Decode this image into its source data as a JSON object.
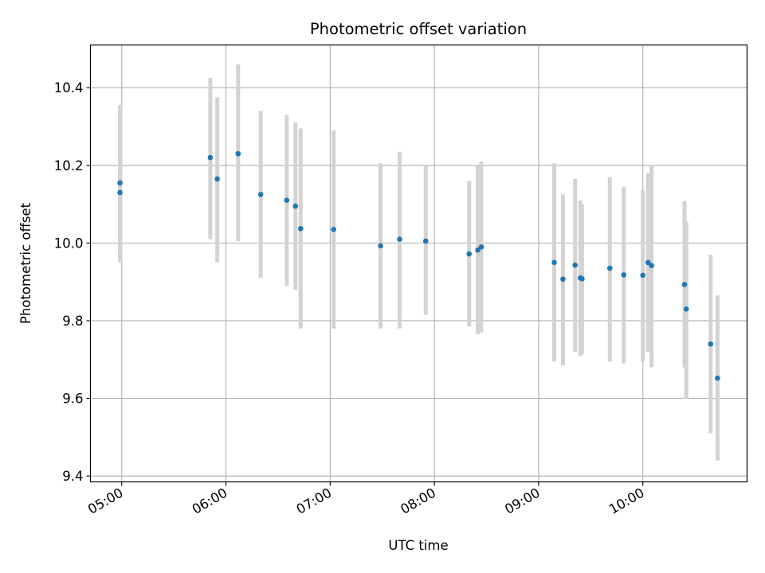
{
  "chart_data": {
    "type": "scatter",
    "title": "Photometric offset variation",
    "xlabel": "UTC time",
    "ylabel": "Photometric offset",
    "grid": true,
    "x_tick_labels": [
      "05:00",
      "06:00",
      "07:00",
      "08:00",
      "09:00",
      "10:00"
    ],
    "y_tick_labels": [
      "9.4",
      "9.6",
      "9.8",
      "10.0",
      "10.2",
      "10.4"
    ],
    "xlim": [
      "04:42",
      "11:00"
    ],
    "ylim": [
      9.385,
      10.51
    ],
    "colors": {
      "point": "#1f77b4",
      "errorbar": "#d3d3d3",
      "grid": "#b0b0b0"
    },
    "series": [
      {
        "points": [
          {
            "x": "04:59",
            "y": 10.13,
            "yerr_low": 9.95,
            "yerr_high": 10.31
          },
          {
            "x": "04:59",
            "y": 10.155,
            "yerr_low": 9.955,
            "yerr_high": 10.355
          },
          {
            "x": "05:51",
            "y": 10.22,
            "yerr_low": 10.01,
            "yerr_high": 10.425
          },
          {
            "x": "05:55",
            "y": 10.165,
            "yerr_low": 9.95,
            "yerr_high": 10.375
          },
          {
            "x": "06:07",
            "y": 10.23,
            "yerr_low": 10.005,
            "yerr_high": 10.46
          },
          {
            "x": "06:20",
            "y": 10.125,
            "yerr_low": 9.91,
            "yerr_high": 10.34
          },
          {
            "x": "06:35",
            "y": 10.11,
            "yerr_low": 9.89,
            "yerr_high": 10.33
          },
          {
            "x": "06:40",
            "y": 10.095,
            "yerr_low": 9.88,
            "yerr_high": 10.31
          },
          {
            "x": "06:43",
            "y": 10.037,
            "yerr_low": 9.78,
            "yerr_high": 10.295
          },
          {
            "x": "07:02",
            "y": 10.035,
            "yerr_low": 9.78,
            "yerr_high": 10.29
          },
          {
            "x": "07:29",
            "y": 9.993,
            "yerr_low": 9.78,
            "yerr_high": 10.205
          },
          {
            "x": "07:40",
            "y": 10.01,
            "yerr_low": 9.78,
            "yerr_high": 10.235
          },
          {
            "x": "07:55",
            "y": 10.005,
            "yerr_low": 9.815,
            "yerr_high": 10.2
          },
          {
            "x": "08:20",
            "y": 9.972,
            "yerr_low": 9.785,
            "yerr_high": 10.16
          },
          {
            "x": "08:25",
            "y": 9.982,
            "yerr_low": 9.765,
            "yerr_high": 10.2
          },
          {
            "x": "08:27",
            "y": 9.99,
            "yerr_low": 9.77,
            "yerr_high": 10.21
          },
          {
            "x": "09:09",
            "y": 9.95,
            "yerr_low": 9.695,
            "yerr_high": 10.205
          },
          {
            "x": "09:14",
            "y": 9.907,
            "yerr_low": 9.685,
            "yerr_high": 10.125
          },
          {
            "x": "09:21",
            "y": 9.943,
            "yerr_low": 9.72,
            "yerr_high": 10.165
          },
          {
            "x": "09:24",
            "y": 9.91,
            "yerr_low": 9.71,
            "yerr_high": 10.11
          },
          {
            "x": "09:25",
            "y": 9.908,
            "yerr_low": 9.715,
            "yerr_high": 10.1
          },
          {
            "x": "09:41",
            "y": 9.935,
            "yerr_low": 9.695,
            "yerr_high": 10.17
          },
          {
            "x": "09:49",
            "y": 9.918,
            "yerr_low": 9.69,
            "yerr_high": 10.145
          },
          {
            "x": "10:00",
            "y": 9.917,
            "yerr_low": 9.695,
            "yerr_high": 10.135
          },
          {
            "x": "10:03",
            "y": 9.95,
            "yerr_low": 9.72,
            "yerr_high": 10.18
          },
          {
            "x": "10:05",
            "y": 9.942,
            "yerr_low": 9.68,
            "yerr_high": 10.2
          },
          {
            "x": "10:24",
            "y": 9.893,
            "yerr_low": 9.68,
            "yerr_high": 10.108
          },
          {
            "x": "10:25",
            "y": 9.83,
            "yerr_low": 9.6,
            "yerr_high": 10.055
          },
          {
            "x": "10:39",
            "y": 9.74,
            "yerr_low": 9.51,
            "yerr_high": 9.97
          },
          {
            "x": "10:43",
            "y": 9.652,
            "yerr_low": 9.44,
            "yerr_high": 9.865
          }
        ]
      }
    ]
  }
}
